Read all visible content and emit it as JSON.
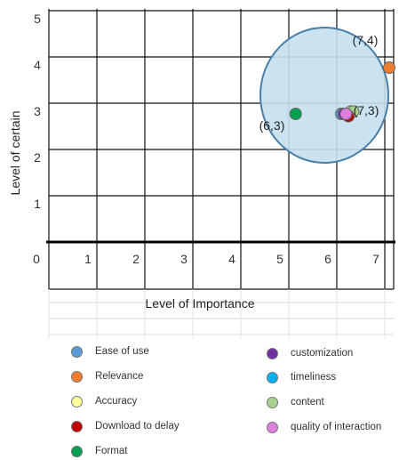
{
  "chart_data": {
    "type": "scatter",
    "xlabel": "Level of Importance",
    "ylabel": "Level of certain",
    "xlim": [
      0,
      7
    ],
    "ylim": [
      0,
      5
    ],
    "x_ticks": [
      "0",
      "1",
      "2",
      "3",
      "4",
      "5",
      "6",
      "7"
    ],
    "y_ticks": [
      "1",
      "2",
      "3",
      "4",
      "5"
    ],
    "grid": true,
    "legend_position": "bottom",
    "series": [
      {
        "name": "Ease of use",
        "color": "#5b9bd5",
        "x": 6.0,
        "y": 3.0
      },
      {
        "name": "Relevance",
        "color": "#ed7d31",
        "x": 7.0,
        "y": 4.0
      },
      {
        "name": "Accuracy",
        "color": "#ffff99",
        "x": 6.2,
        "y": 3.05
      },
      {
        "name": "Download to delay",
        "color": "#c00000",
        "x": 6.15,
        "y": 2.95
      },
      {
        "name": "Format",
        "color": "#00a050",
        "x": 5.05,
        "y": 3.0
      },
      {
        "name": "customization",
        "color": "#7030a0",
        "x": 6.05,
        "y": 3.0
      },
      {
        "name": "timeliness",
        "color": "#00b0f0",
        "x": 6.1,
        "y": 3.0
      },
      {
        "name": "content",
        "color": "#a9d18e",
        "x": 6.25,
        "y": 3.05
      },
      {
        "name": "quality of interaction",
        "color": "#e07ee0",
        "x": 6.1,
        "y": 3.0
      }
    ],
    "annotations": [
      {
        "text": "(7,4)",
        "x": 7.0,
        "y": 4.0
      },
      {
        "text": "(6,3)",
        "x": 5.05,
        "y": 3.0
      },
      {
        "text": "(7,3)",
        "x": 6.2,
        "y": 3.0
      }
    ],
    "highlight_circle": {
      "color": "#c5dff0",
      "stroke": "#4a7fa8"
    }
  }
}
